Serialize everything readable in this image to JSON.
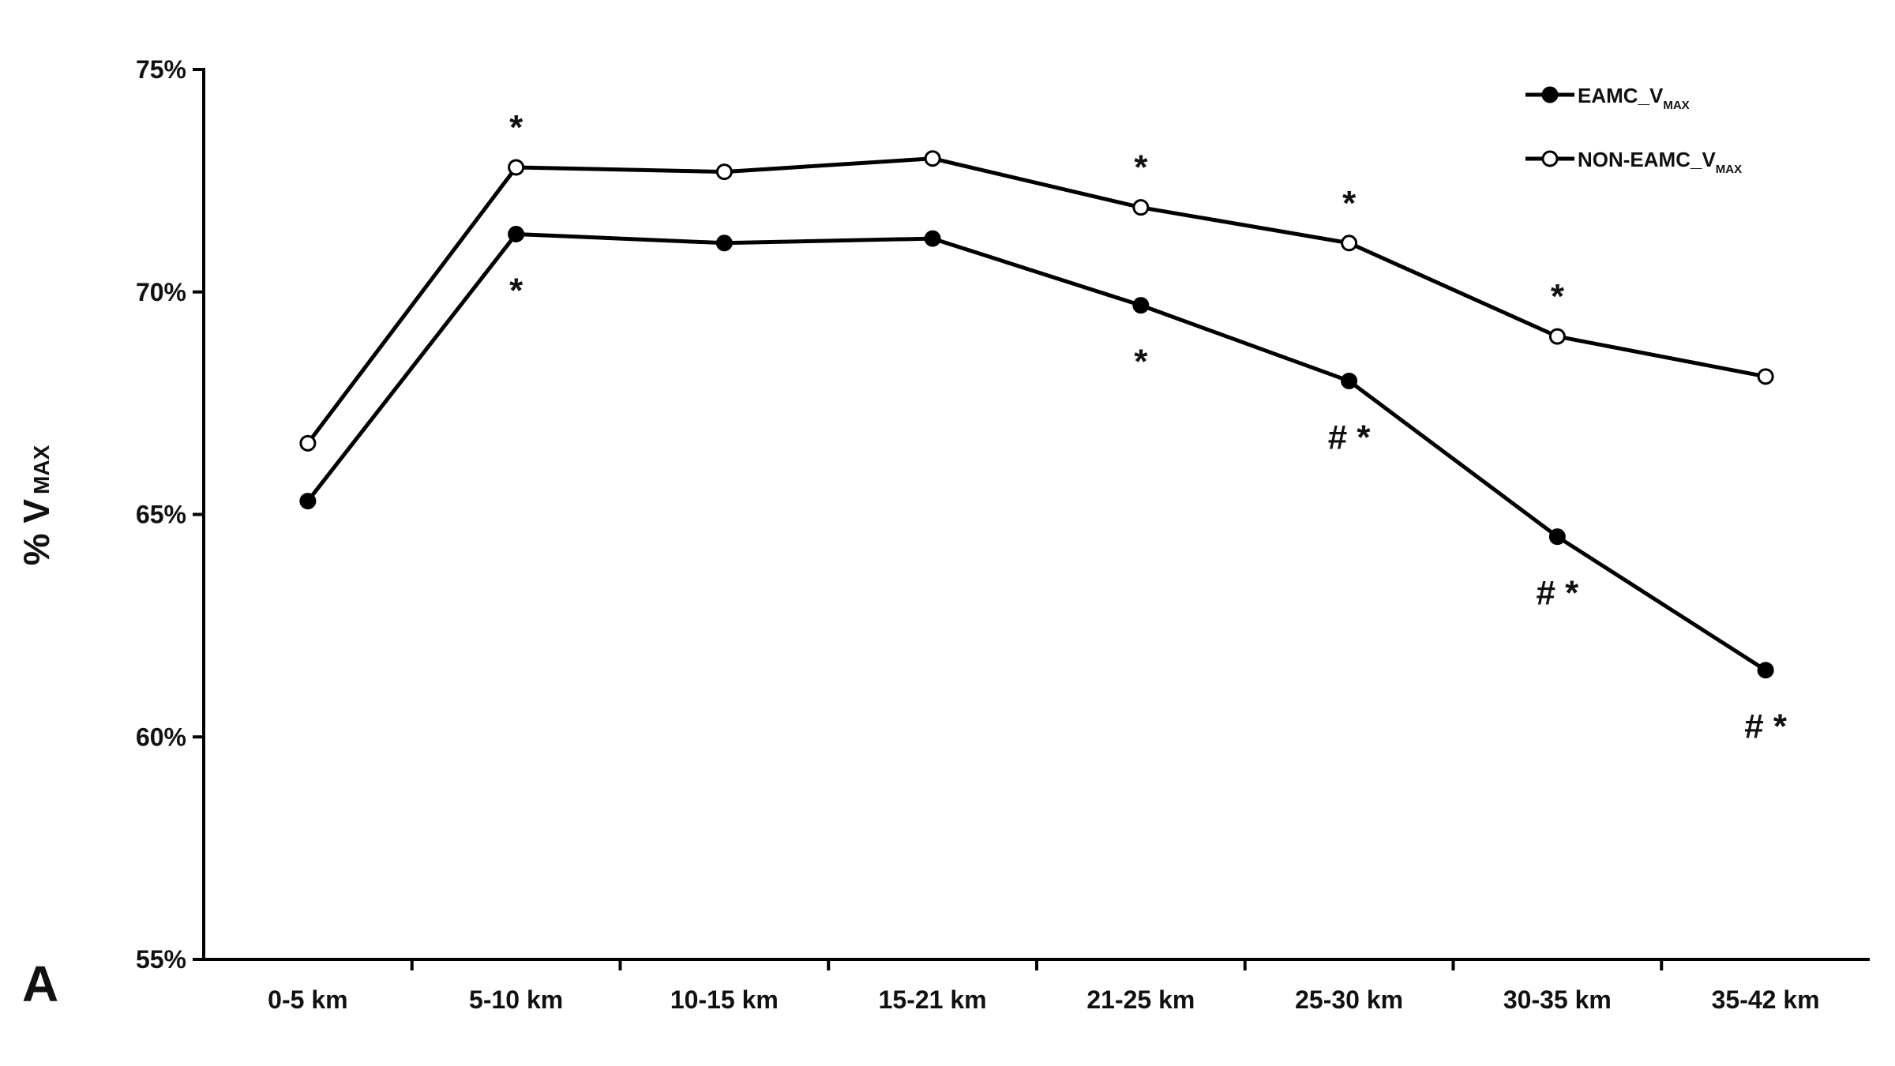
{
  "chart_data": {
    "type": "line",
    "panel_label": "A",
    "ylabel": {
      "main": "% V",
      "sub": "MAX"
    },
    "ylim": [
      55,
      75
    ],
    "yticks": [
      55,
      60,
      65,
      70,
      75
    ],
    "ytick_labels": [
      "55%",
      "60%",
      "65%",
      "70%",
      "75%"
    ],
    "categories": [
      "0-5 km",
      "5-10 km",
      "10-15 km",
      "15-21 km",
      "21-25 km",
      "25-30 km",
      "30-35 km",
      "35-42 km"
    ],
    "legend_position": "top-right",
    "series": [
      {
        "key": "eamc",
        "name": "EAMC_V",
        "name_sub": "MAX",
        "marker": "filled-circle",
        "values": [
          65.3,
          71.3,
          71.1,
          71.2,
          69.7,
          68.0,
          64.5,
          61.5
        ],
        "annotations": [
          "",
          "*",
          "",
          "",
          "*",
          "# *",
          "# *",
          "# *"
        ]
      },
      {
        "key": "non_eamc",
        "name": "NON-EAMC_V",
        "name_sub": "MAX",
        "marker": "open-circle",
        "values": [
          66.6,
          72.8,
          72.7,
          73.0,
          71.9,
          71.1,
          69.0,
          68.1
        ],
        "annotations": [
          "",
          "*",
          "",
          "",
          "*",
          "*",
          "*",
          ""
        ]
      }
    ],
    "colors": {
      "line": "#000000",
      "open_marker_fill": "#ffffff"
    }
  }
}
